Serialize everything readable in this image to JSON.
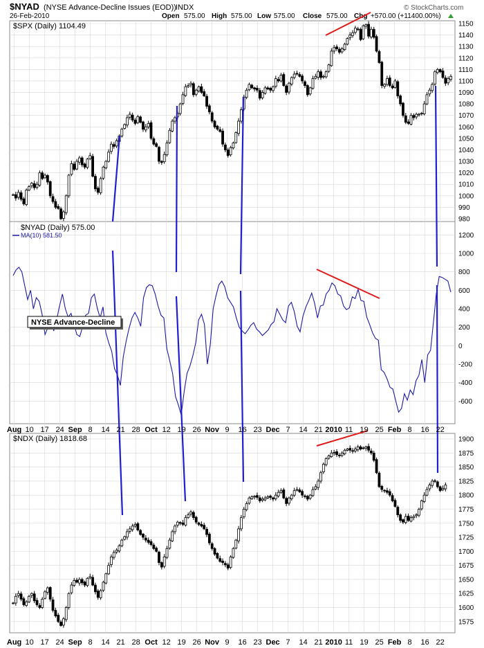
{
  "header": {
    "symbol": "$NYAD",
    "description": "(NYSE Advance-Decline Issues (EOD))",
    "exchange": "INDX",
    "date": "26-Feb-2010",
    "open_label": "Open",
    "open_value": "575.00",
    "high_label": "High",
    "high_value": "575.00",
    "low_label": "Low",
    "low_value": "575.00",
    "close_label": "Close",
    "close_value": "575.00",
    "chg_label": "Chg",
    "chg_value": "+570.00 (+11400.00%)",
    "watermark": "© StockCharts.com"
  },
  "colors": {
    "candle": "#000000",
    "ad_line": "#1a1aa6",
    "annotation_blue": "#1f1fcf",
    "annotation_red": "#e01a1a",
    "grid": "#d8d8d8",
    "up_arrow": "#2e9e2e"
  },
  "chart_data": [
    {
      "type": "candlestick",
      "panel": "spx",
      "title": "$SPX (Daily) 1104.49",
      "ylim": [
        980,
        1150
      ],
      "yticks": [
        980,
        990,
        1000,
        1010,
        1020,
        1030,
        1040,
        1050,
        1060,
        1070,
        1080,
        1090,
        1100,
        1110,
        1120,
        1130,
        1140,
        1150
      ],
      "closes": [
        1001,
        998,
        1003,
        997,
        993,
        1005,
        1008,
        1011,
        1007,
        1010,
        1020,
        1015,
        1018,
        1012,
        1000,
        995,
        990,
        989,
        980,
        986,
        1000,
        1018,
        1028,
        1023,
        1030,
        1033,
        1027,
        1025,
        1032,
        1035,
        1017,
        1006,
        1003,
        1015,
        1025,
        1030,
        1038,
        1045,
        1043,
        1048,
        1052,
        1058,
        1062,
        1068,
        1071,
        1066,
        1063,
        1069,
        1064,
        1058,
        1060,
        1063,
        1050,
        1045,
        1043,
        1030,
        1029,
        1036,
        1046,
        1057,
        1065,
        1068,
        1072,
        1080,
        1088,
        1095,
        1096,
        1098,
        1088,
        1092,
        1095,
        1090,
        1087,
        1078,
        1073,
        1065,
        1060,
        1058,
        1056,
        1045,
        1040,
        1035,
        1042,
        1046,
        1055,
        1065,
        1075,
        1086,
        1092,
        1097,
        1094,
        1093,
        1092,
        1085,
        1090,
        1094,
        1093,
        1092,
        1095,
        1102,
        1100,
        1105,
        1096,
        1090,
        1098,
        1103,
        1106,
        1106,
        1104,
        1100,
        1096,
        1088,
        1094,
        1102,
        1104,
        1108,
        1103,
        1104,
        1108,
        1114,
        1126,
        1129,
        1128,
        1125,
        1128,
        1132,
        1137,
        1140,
        1142,
        1146,
        1145,
        1136,
        1148,
        1149,
        1139,
        1145,
        1138,
        1126,
        1116,
        1096,
        1097,
        1102,
        1096,
        1094,
        1100,
        1087,
        1080,
        1070,
        1064,
        1063,
        1070,
        1068,
        1071,
        1071,
        1072,
        1080,
        1088,
        1092,
        1097,
        1108,
        1110,
        1108,
        1103,
        1098,
        1102,
        1104
      ],
      "annotations": [
        "blue verticals: Sep 18, Oct 19, Nov 17, Feb 24",
        "red rising trendline Jan 2010 highs"
      ]
    },
    {
      "type": "line",
      "panel": "nyad",
      "title": "$NYAD (Daily) 575.00",
      "series": [
        {
          "name": "MA(10) 581.50",
          "values": [
            760,
            820,
            850,
            800,
            650,
            500,
            600,
            400,
            520,
            480,
            340,
            120,
            200,
            300,
            160,
            280,
            430,
            560,
            400,
            310,
            350,
            230,
            120,
            100,
            210,
            330,
            350,
            520,
            560,
            410,
            300,
            420,
            140,
            30,
            -60,
            -250,
            -320,
            -430,
            -120,
            50,
            190,
            300,
            360,
            300,
            210,
            520,
            630,
            660,
            650,
            560,
            430,
            330,
            300,
            -30,
            -160,
            -300,
            -550,
            -640,
            -750,
            -500,
            -300,
            -220,
            -110,
            30,
            280,
            340,
            230,
            -200,
            10,
            400,
            540,
            660,
            700,
            640,
            520,
            470,
            420,
            300,
            200,
            160,
            130,
            170,
            220,
            250,
            180,
            150,
            110,
            140,
            170,
            230,
            260,
            400,
            340,
            280,
            250,
            430,
            470,
            370,
            210,
            150,
            320,
            420,
            490,
            570,
            460,
            300,
            430,
            440,
            560,
            600,
            680,
            650,
            560,
            540,
            430,
            390,
            410,
            530,
            510,
            610,
            490,
            480,
            310,
            230,
            140,
            80,
            60,
            -260,
            -290,
            -360,
            -450,
            -470,
            -600,
            -720,
            -680,
            -520,
            -590,
            -480,
            -530,
            -380,
            -320,
            -150,
            -400,
            -100,
            -50,
            250,
            560,
            750,
            740,
            720,
            700,
            580
          ]
        }
      ],
      "ylim": [
        -800,
        1300
      ],
      "yticks": [
        -600,
        -400,
        -200,
        0,
        200,
        400,
        600,
        800,
        1000,
        1200
      ],
      "callout": "NYSE Advance-Decline",
      "annotations": [
        "blue verticals through A/D peaks",
        "red declining trendline Dec–Jan A/D peaks"
      ]
    },
    {
      "type": "candlestick",
      "panel": "ndx",
      "title": "$NDX (Daily) 1818.68",
      "ylim": [
        1560,
        1905
      ],
      "yticks": [
        1575,
        1600,
        1625,
        1650,
        1675,
        1700,
        1725,
        1750,
        1775,
        1800,
        1825,
        1850,
        1875,
        1900
      ],
      "closes": [
        1608,
        1620,
        1625,
        1615,
        1605,
        1610,
        1620,
        1625,
        1612,
        1605,
        1600,
        1615,
        1628,
        1635,
        1615,
        1595,
        1585,
        1575,
        1568,
        1580,
        1600,
        1625,
        1640,
        1648,
        1645,
        1650,
        1644,
        1640,
        1652,
        1655,
        1640,
        1628,
        1618,
        1630,
        1645,
        1660,
        1675,
        1690,
        1698,
        1702,
        1710,
        1720,
        1726,
        1735,
        1740,
        1745,
        1748,
        1738,
        1730,
        1725,
        1720,
        1716,
        1712,
        1705,
        1700,
        1680,
        1672,
        1690,
        1705,
        1720,
        1735,
        1745,
        1752,
        1750,
        1748,
        1760,
        1765,
        1770,
        1760,
        1752,
        1748,
        1745,
        1740,
        1730,
        1715,
        1705,
        1695,
        1688,
        1682,
        1680,
        1676,
        1670,
        1690,
        1705,
        1720,
        1740,
        1760,
        1775,
        1785,
        1795,
        1797,
        1798,
        1796,
        1790,
        1793,
        1795,
        1797,
        1796,
        1793,
        1800,
        1805,
        1808,
        1795,
        1785,
        1795,
        1800,
        1808,
        1810,
        1806,
        1800,
        1798,
        1793,
        1800,
        1810,
        1815,
        1825,
        1840,
        1855,
        1865,
        1870,
        1875,
        1876,
        1872,
        1870,
        1875,
        1880,
        1882,
        1880,
        1878,
        1882,
        1886,
        1882,
        1884,
        1886,
        1880,
        1875,
        1862,
        1840,
        1815,
        1810,
        1808,
        1805,
        1800,
        1790,
        1780,
        1765,
        1755,
        1752,
        1762,
        1755,
        1760,
        1762,
        1765,
        1775,
        1790,
        1800,
        1810,
        1818,
        1825,
        1825,
        1815,
        1808,
        1812,
        1818
      ]
    }
  ],
  "x_axis": {
    "labels": [
      {
        "text": "Aug",
        "bold": true
      },
      {
        "text": "10"
      },
      {
        "text": "17"
      },
      {
        "text": "24"
      },
      {
        "text": "Sep",
        "bold": true
      },
      {
        "text": "8"
      },
      {
        "text": "14"
      },
      {
        "text": "21"
      },
      {
        "text": "28"
      },
      {
        "text": "Oct",
        "bold": true
      },
      {
        "text": "12"
      },
      {
        "text": "19"
      },
      {
        "text": "26"
      },
      {
        "text": "Nov",
        "bold": true
      },
      {
        "text": "9"
      },
      {
        "text": "16"
      },
      {
        "text": "23"
      },
      {
        "text": "Dec",
        "bold": true
      },
      {
        "text": "7"
      },
      {
        "text": "14"
      },
      {
        "text": "21"
      },
      {
        "text": "2010",
        "bold": true
      },
      {
        "text": "11"
      },
      {
        "text": "19"
      },
      {
        "text": "25"
      },
      {
        "text": "Feb",
        "bold": true
      },
      {
        "text": "8"
      },
      {
        "text": "16"
      },
      {
        "text": "22"
      }
    ]
  }
}
